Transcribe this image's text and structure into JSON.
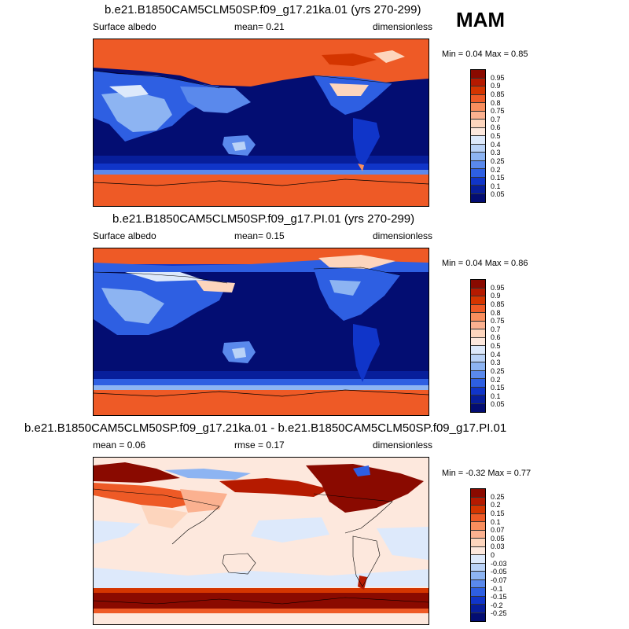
{
  "season": "MAM",
  "panels": [
    {
      "title": "b.e21.B1850CAM5CLM50SP.f09_g17.21ka.01 (yrs 270-299)",
      "left_label": "Surface albedo",
      "center_label": "mean=   0.21",
      "right_label": "dimensionless",
      "minmax": "Min =   0.04 Max =   0.85",
      "colorbar_labels": [
        "0.95",
        "0.9",
        "0.85",
        "0.8",
        "0.75",
        "0.7",
        "0.6",
        "0.5",
        "0.4",
        "0.3",
        "0.25",
        "0.2",
        "0.15",
        "0.1",
        "0.05"
      ],
      "colors": [
        "#8a0a00",
        "#b51a00",
        "#d43500",
        "#ee5a26",
        "#f88e5e",
        "#fbb190",
        "#fdd5bd",
        "#fde8dd",
        "#dde9fb",
        "#b9d2f7",
        "#8db4f2",
        "#5a89ec",
        "#2e5fe2",
        "#1035c9",
        "#071e9b",
        "#030d72"
      ]
    },
    {
      "title": "b.e21.B1850CAM5CLM50SP.f09_g17.PI.01 (yrs 270-299)",
      "left_label": "Surface albedo",
      "center_label": "mean=   0.15",
      "right_label": "dimensionless",
      "minmax": "Min =   0.04 Max =   0.86",
      "colorbar_labels": [
        "0.95",
        "0.9",
        "0.85",
        "0.8",
        "0.75",
        "0.7",
        "0.6",
        "0.5",
        "0.4",
        "0.3",
        "0.25",
        "0.2",
        "0.15",
        "0.1",
        "0.05"
      ],
      "colors": [
        "#8a0a00",
        "#b51a00",
        "#d43500",
        "#ee5a26",
        "#f88e5e",
        "#fbb190",
        "#fdd5bd",
        "#fde8dd",
        "#dde9fb",
        "#b9d2f7",
        "#8db4f2",
        "#5a89ec",
        "#2e5fe2",
        "#1035c9",
        "#071e9b",
        "#030d72"
      ]
    },
    {
      "title": "b.e21.B1850CAM5CLM50SP.f09_g17.21ka.01 - b.e21.B1850CAM5CLM50SP.f09_g17.PI.01",
      "left_label": "mean =   0.06",
      "center_label": "rmse =   0.17",
      "right_label": "dimensionless",
      "minmax": "Min =  -0.32 Max =   0.77",
      "colorbar_labels": [
        "0.25",
        "0.2",
        "0.15",
        "0.1",
        "0.07",
        "0.05",
        "0.03",
        "0",
        "-0.03",
        "-0.05",
        "-0.07",
        "-0.1",
        "-0.15",
        "-0.2",
        "-0.25"
      ],
      "colors": [
        "#8a0a00",
        "#b51a00",
        "#d43500",
        "#ee5a26",
        "#f88e5e",
        "#fbb190",
        "#fdd5bd",
        "#fde8dd",
        "#dde9fb",
        "#b9d2f7",
        "#8db4f2",
        "#5a89ec",
        "#2e5fe2",
        "#1035c9",
        "#071e9b",
        "#030d72"
      ]
    }
  ],
  "chart_data": [
    {
      "type": "heatmap",
      "title": "b.e21.B1850CAM5CLM50SP.f09_g17.21ka.01 (yrs 270-299)",
      "variable": "Surface albedo",
      "units": "dimensionless",
      "mean": 0.21,
      "min": 0.04,
      "max": 0.85,
      "contour_levels": [
        0.05,
        0.1,
        0.15,
        0.2,
        0.25,
        0.3,
        0.4,
        0.5,
        0.6,
        0.7,
        0.75,
        0.8,
        0.85,
        0.9,
        0.95
      ]
    },
    {
      "type": "heatmap",
      "title": "b.e21.B1850CAM5CLM50SP.f09_g17.PI.01 (yrs 270-299)",
      "variable": "Surface albedo",
      "units": "dimensionless",
      "mean": 0.15,
      "min": 0.04,
      "max": 0.86,
      "contour_levels": [
        0.05,
        0.1,
        0.15,
        0.2,
        0.25,
        0.3,
        0.4,
        0.5,
        0.6,
        0.7,
        0.75,
        0.8,
        0.85,
        0.9,
        0.95
      ]
    },
    {
      "type": "heatmap",
      "title": "b.e21.B1850CAM5CLM50SP.f09_g17.21ka.01 - b.e21.B1850CAM5CLM50SP.f09_g17.PI.01",
      "units": "dimensionless",
      "mean": 0.06,
      "rmse": 0.17,
      "min": -0.32,
      "max": 0.77,
      "contour_levels": [
        -0.25,
        -0.2,
        -0.15,
        -0.1,
        -0.07,
        -0.05,
        -0.03,
        0,
        0.03,
        0.05,
        0.07,
        0.1,
        0.15,
        0.2,
        0.25
      ]
    }
  ]
}
